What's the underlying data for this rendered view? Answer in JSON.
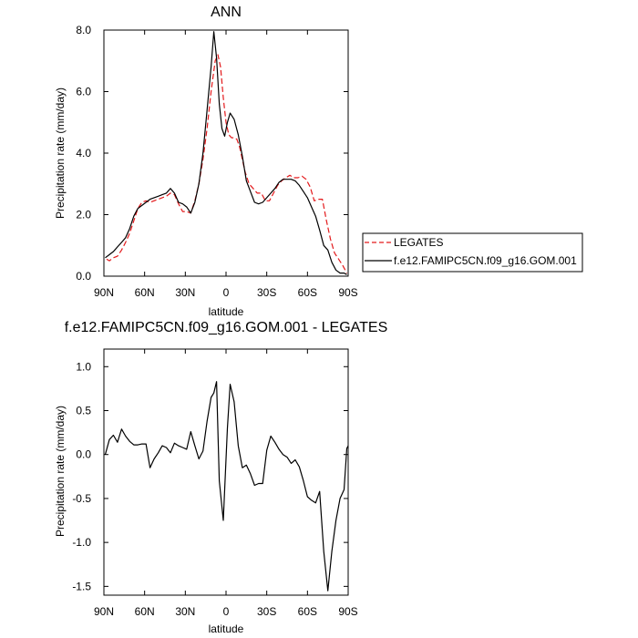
{
  "chart_data": [
    {
      "type": "line",
      "title": "ANN",
      "xlabel": "latitude",
      "ylabel": "Precipitation rate (mm/day)",
      "xlim": [
        90,
        -90
      ],
      "ylim": [
        0.0,
        8.0
      ],
      "x_tick_values": [
        90,
        60,
        30,
        0,
        -30,
        -60,
        -90
      ],
      "x_tick_labels": [
        "90N",
        "60N",
        "30N",
        "0",
        "30S",
        "60S",
        "90S"
      ],
      "y_tick_values": [
        0.0,
        2.0,
        4.0,
        6.0,
        8.0
      ],
      "y_tick_labels": [
        "0.0",
        "2.0",
        "4.0",
        "6.0",
        "8.0"
      ],
      "legend_position": "right",
      "series": [
        {
          "name": "LEGATES",
          "color": "#e31a1c",
          "style": "dashed",
          "points": [
            [
              88,
              0.55
            ],
            [
              86,
              0.5
            ],
            [
              83,
              0.6
            ],
            [
              80,
              0.65
            ],
            [
              77,
              0.85
            ],
            [
              74,
              1.1
            ],
            [
              71,
              1.4
            ],
            [
              68,
              1.8
            ],
            [
              65,
              2.2
            ],
            [
              62,
              2.4
            ],
            [
              59,
              2.45
            ],
            [
              56,
              2.4
            ],
            [
              53,
              2.45
            ],
            [
              50,
              2.5
            ],
            [
              47,
              2.55
            ],
            [
              44,
              2.6
            ],
            [
              41,
              2.7
            ],
            [
              38,
              2.65
            ],
            [
              35,
              2.35
            ],
            [
              32,
              2.1
            ],
            [
              29,
              2.1
            ],
            [
              26,
              2.05
            ],
            [
              23,
              2.45
            ],
            [
              20,
              3.0
            ],
            [
              17,
              3.8
            ],
            [
              14,
              4.8
            ],
            [
              11,
              6.0
            ],
            [
              8,
              7.0
            ],
            [
              6,
              7.2
            ],
            [
              4,
              6.8
            ],
            [
              2,
              5.8
            ],
            [
              0,
              5.0
            ],
            [
              -2,
              4.6
            ],
            [
              -4,
              4.5
            ],
            [
              -6,
              4.5
            ],
            [
              -8,
              4.45
            ],
            [
              -10,
              4.2
            ],
            [
              -12,
              3.8
            ],
            [
              -14,
              3.4
            ],
            [
              -17,
              3.0
            ],
            [
              -20,
              2.85
            ],
            [
              -23,
              2.7
            ],
            [
              -26,
              2.7
            ],
            [
              -29,
              2.45
            ],
            [
              -32,
              2.45
            ],
            [
              -35,
              2.7
            ],
            [
              -38,
              2.95
            ],
            [
              -41,
              3.1
            ],
            [
              -44,
              3.2
            ],
            [
              -47,
              3.28
            ],
            [
              -50,
              3.2
            ],
            [
              -53,
              3.2
            ],
            [
              -56,
              3.25
            ],
            [
              -59,
              3.15
            ],
            [
              -62,
              2.9
            ],
            [
              -65,
              2.45
            ],
            [
              -68,
              2.5
            ],
            [
              -71,
              2.5
            ],
            [
              -74,
              1.8
            ],
            [
              -77,
              1.2
            ],
            [
              -80,
              0.75
            ],
            [
              -83,
              0.55
            ],
            [
              -86,
              0.35
            ],
            [
              -89,
              0.1
            ]
          ]
        },
        {
          "name": "f.e12.FAMIPC5CN.f09_g16.GOM.001",
          "color": "#000000",
          "style": "solid",
          "points": [
            [
              89,
              0.6
            ],
            [
              86,
              0.7
            ],
            [
              83,
              0.8
            ],
            [
              80,
              0.95
            ],
            [
              77,
              1.1
            ],
            [
              74,
              1.25
            ],
            [
              71,
              1.55
            ],
            [
              68,
              1.95
            ],
            [
              65,
              2.2
            ],
            [
              62,
              2.3
            ],
            [
              59,
              2.4
            ],
            [
              56,
              2.5
            ],
            [
              53,
              2.55
            ],
            [
              50,
              2.6
            ],
            [
              47,
              2.65
            ],
            [
              44,
              2.7
            ],
            [
              41,
              2.85
            ],
            [
              38,
              2.7
            ],
            [
              35,
              2.4
            ],
            [
              32,
              2.35
            ],
            [
              29,
              2.25
            ],
            [
              26,
              2.05
            ],
            [
              23,
              2.4
            ],
            [
              20,
              3.0
            ],
            [
              17,
              4.0
            ],
            [
              14,
              5.4
            ],
            [
              11,
              6.8
            ],
            [
              9,
              7.95
            ],
            [
              7,
              7.1
            ],
            [
              5,
              5.6
            ],
            [
              3,
              4.8
            ],
            [
              1,
              4.55
            ],
            [
              -1,
              5.0
            ],
            [
              -3,
              5.3
            ],
            [
              -6,
              5.1
            ],
            [
              -9,
              4.6
            ],
            [
              -12,
              3.9
            ],
            [
              -15,
              3.1
            ],
            [
              -18,
              2.75
            ],
            [
              -21,
              2.4
            ],
            [
              -24,
              2.35
            ],
            [
              -27,
              2.4
            ],
            [
              -30,
              2.55
            ],
            [
              -33,
              2.7
            ],
            [
              -36,
              2.85
            ],
            [
              -39,
              3.05
            ],
            [
              -42,
              3.15
            ],
            [
              -45,
              3.15
            ],
            [
              -48,
              3.15
            ],
            [
              -51,
              3.1
            ],
            [
              -54,
              2.95
            ],
            [
              -57,
              2.75
            ],
            [
              -60,
              2.55
            ],
            [
              -63,
              2.25
            ],
            [
              -66,
              1.95
            ],
            [
              -69,
              1.5
            ],
            [
              -72,
              1.0
            ],
            [
              -75,
              0.85
            ],
            [
              -78,
              0.45
            ],
            [
              -81,
              0.2
            ],
            [
              -84,
              0.1
            ],
            [
              -87,
              0.1
            ],
            [
              -89,
              0.05
            ]
          ]
        }
      ]
    },
    {
      "type": "line",
      "title": "f.e12.FAMIPC5CN.f09_g16.GOM.001 - LEGATES",
      "xlabel": "latitude",
      "ylabel": "Precipitation rate (mm/day)",
      "xlim": [
        90,
        -90
      ],
      "ylim": [
        -1.6,
        1.2
      ],
      "x_tick_values": [
        90,
        60,
        30,
        0,
        -30,
        -60,
        -90
      ],
      "x_tick_labels": [
        "90N",
        "60N",
        "30N",
        "0",
        "30S",
        "60S",
        "90S"
      ],
      "y_tick_values": [
        -1.5,
        -1.0,
        -0.5,
        0.0,
        0.5,
        1.0
      ],
      "y_tick_labels": [
        "-1.5",
        "-1.0",
        "-0.5",
        "0.0",
        "0.5",
        "1.0"
      ],
      "series": [
        {
          "color": "#000000",
          "style": "solid",
          "points": [
            [
              89,
              0.0
            ],
            [
              86,
              0.17
            ],
            [
              83,
              0.22
            ],
            [
              80,
              0.14
            ],
            [
              77,
              0.29
            ],
            [
              74,
              0.21
            ],
            [
              71,
              0.15
            ],
            [
              68,
              0.11
            ],
            [
              65,
              0.11
            ],
            [
              62,
              0.12
            ],
            [
              59,
              0.12
            ],
            [
              56,
              -0.15
            ],
            [
              53,
              -0.05
            ],
            [
              50,
              0.02
            ],
            [
              47,
              0.1
            ],
            [
              44,
              0.08
            ],
            [
              41,
              0.02
            ],
            [
              38,
              0.13
            ],
            [
              35,
              0.1
            ],
            [
              32,
              0.08
            ],
            [
              29,
              0.06
            ],
            [
              26,
              0.26
            ],
            [
              23,
              0.1
            ],
            [
              20,
              -0.05
            ],
            [
              17,
              0.04
            ],
            [
              14,
              0.38
            ],
            [
              11,
              0.65
            ],
            [
              9,
              0.7
            ],
            [
              7,
              0.83
            ],
            [
              5,
              -0.3
            ],
            [
              2,
              -0.75
            ],
            [
              -1,
              0.3
            ],
            [
              -3,
              0.8
            ],
            [
              -6,
              0.6
            ],
            [
              -9,
              0.1
            ],
            [
              -12,
              -0.15
            ],
            [
              -15,
              -0.12
            ],
            [
              -18,
              -0.22
            ],
            [
              -21,
              -0.35
            ],
            [
              -24,
              -0.33
            ],
            [
              -27,
              -0.33
            ],
            [
              -30,
              0.05
            ],
            [
              -33,
              0.21
            ],
            [
              -36,
              0.14
            ],
            [
              -39,
              0.06
            ],
            [
              -42,
              0.0
            ],
            [
              -45,
              -0.03
            ],
            [
              -48,
              -0.1
            ],
            [
              -51,
              -0.06
            ],
            [
              -54,
              -0.14
            ],
            [
              -57,
              -0.3
            ],
            [
              -60,
              -0.48
            ],
            [
              -63,
              -0.52
            ],
            [
              -66,
              -0.55
            ],
            [
              -69,
              -0.42
            ],
            [
              -72,
              -1.1
            ],
            [
              -75,
              -1.55
            ],
            [
              -78,
              -1.1
            ],
            [
              -81,
              -0.75
            ],
            [
              -84,
              -0.5
            ],
            [
              -87,
              -0.4
            ],
            [
              -89,
              0.07
            ],
            [
              -90,
              0.1
            ]
          ]
        }
      ]
    }
  ]
}
